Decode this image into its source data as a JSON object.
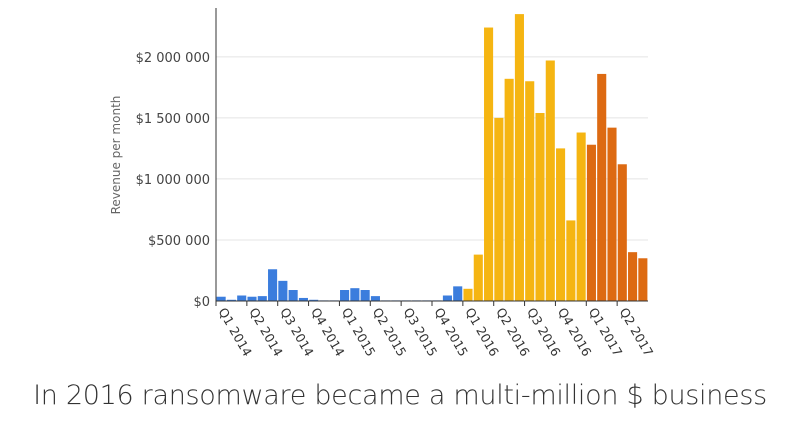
{
  "caption": "In 2016 ransomware became a multi-million $ business",
  "chart_data": {
    "type": "bar",
    "title": "",
    "ylabel": "Revenue per month",
    "xlabel": "",
    "ylim": [
      0,
      2400000
    ],
    "grid": true,
    "y_ticks": [
      {
        "value": 0,
        "label": "$0"
      },
      {
        "value": 500000,
        "label": "$500 000"
      },
      {
        "value": 1000000,
        "label": "$1 000 000"
      },
      {
        "value": 1500000,
        "label": "$1 500 000"
      },
      {
        "value": 2000000,
        "label": "$2 000 000"
      }
    ],
    "x_ticks": [
      {
        "index": 0,
        "label": "Q1 2014"
      },
      {
        "index": 3,
        "label": "Q2 2014"
      },
      {
        "index": 6,
        "label": "Q3 2014"
      },
      {
        "index": 9,
        "label": "Q4 2014"
      },
      {
        "index": 12,
        "label": "Q1 2015"
      },
      {
        "index": 15,
        "label": "Q2 2015"
      },
      {
        "index": 18,
        "label": "Q3 2015"
      },
      {
        "index": 21,
        "label": "Q4 2015"
      },
      {
        "index": 24,
        "label": "Q1 2016"
      },
      {
        "index": 27,
        "label": "Q2 2016"
      },
      {
        "index": 30,
        "label": "Q3 2016"
      },
      {
        "index": 33,
        "label": "Q4 2016"
      },
      {
        "index": 36,
        "label": "Q1 2017"
      },
      {
        "index": 39,
        "label": "Q2 2017"
      }
    ],
    "colors": {
      "2014-2015": "#3b7ddd",
      "2016": "#f5b512",
      "2017": "#dd6a12"
    },
    "series": [
      {
        "color_key": "2014-2015",
        "start_index": 0,
        "values": [
          35000,
          10000,
          45000,
          35000,
          40000,
          260000,
          165000,
          90000,
          25000,
          10000,
          5000,
          5000,
          90000,
          105000,
          90000,
          40000,
          5000,
          5000,
          5000,
          5000,
          5000,
          5000,
          45000,
          120000
        ]
      },
      {
        "color_key": "2016",
        "start_index": 24,
        "values": [
          100000,
          380000,
          2240000,
          1500000,
          1820000,
          2350000,
          1800000,
          1540000,
          1970000,
          1250000,
          660000,
          1380000
        ]
      },
      {
        "color_key": "2017",
        "start_index": 36,
        "values": [
          1280000,
          1860000,
          1420000,
          1120000,
          400000,
          350000
        ]
      }
    ]
  }
}
